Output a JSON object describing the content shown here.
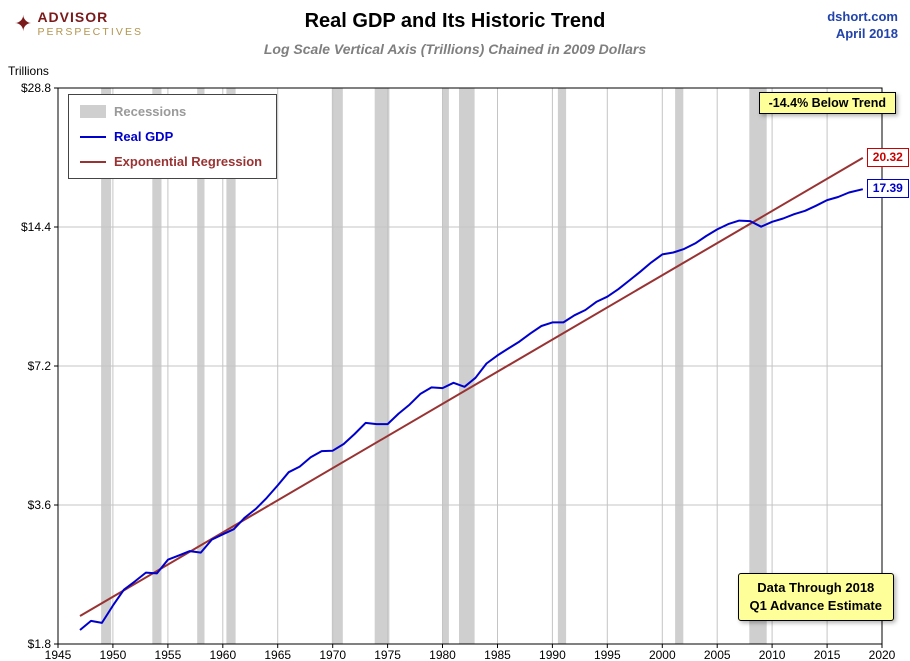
{
  "header": {
    "logo_line1": "ADVISOR",
    "logo_line2": "PERSPECTIVES",
    "title": "Real GDP and Its Historic Trend",
    "subtitle": "Log Scale Vertical Axis (Trillions) Chained in 2009 Dollars",
    "source": "dshort.com",
    "date": "April 2018"
  },
  "colors": {
    "gdp_line": "#0000cc",
    "regression_line": "#993333",
    "recession_band": "#cfcfcf",
    "annotation_bg": "#ffff99",
    "source_text": "#2244aa",
    "logo_red": "#7a1a1a",
    "logo_gold": "#b3954f"
  },
  "legend": [
    {
      "label": "Recessions",
      "type": "band",
      "color": "#cfcfcf",
      "label_color": "#9a9a9a"
    },
    {
      "label": "Real GDP",
      "type": "line",
      "color": "#0000cc",
      "label_color": "#0000cc"
    },
    {
      "label": "Exponential Regression",
      "type": "line",
      "color": "#993333",
      "label_color": "#993333"
    }
  ],
  "annotations": {
    "below_trend": "-14.4% Below Trend",
    "regression_end_value": "20.32",
    "gdp_end_value": "17.39",
    "data_through_line1": "Data Through 2018",
    "data_through_line2": "Q1 Advance Estimate"
  },
  "chart_data": {
    "type": "line",
    "title": "Real GDP and Its Historic Trend",
    "subtitle": "Log Scale Vertical Axis (Trillions) Chained in 2009 Dollars",
    "xlabel": "",
    "ylabel": "Trillions",
    "y_scale": "log",
    "x_range": [
      1945,
      2020
    ],
    "y_lim": [
      1.8,
      28.8
    ],
    "x_ticks": [
      1945,
      1950,
      1955,
      1960,
      1965,
      1970,
      1975,
      1980,
      1985,
      1990,
      1995,
      2000,
      2005,
      2010,
      2015,
      2020
    ],
    "y_ticks": [
      1.8,
      3.6,
      7.2,
      14.4,
      28.8
    ],
    "y_tick_labels": [
      "$1.8",
      "$3.6",
      "$7.2",
      "$14.4",
      "$28.8"
    ],
    "grid": true,
    "legend_position": "top-left",
    "recession_color": "#cfcfcf",
    "recessions": [
      [
        1948.92,
        1949.83
      ],
      [
        1953.58,
        1954.42
      ],
      [
        1957.67,
        1958.33
      ],
      [
        1960.33,
        1961.17
      ],
      [
        1969.92,
        1970.92
      ],
      [
        1973.83,
        1975.17
      ],
      [
        1980.0,
        1980.58
      ],
      [
        1981.5,
        1982.92
      ],
      [
        1990.5,
        1991.25
      ],
      [
        2001.17,
        2001.92
      ],
      [
        2007.92,
        2009.5
      ]
    ],
    "series": [
      {
        "name": "Real GDP",
        "color": "#0000cc",
        "end_label": "17.39",
        "x": [
          1947,
          1948,
          1949,
          1950,
          1951,
          1952,
          1953,
          1954,
          1955,
          1956,
          1957,
          1958,
          1959,
          1960,
          1961,
          1962,
          1963,
          1964,
          1965,
          1966,
          1967,
          1968,
          1969,
          1970,
          1971,
          1972,
          1973,
          1974,
          1975,
          1976,
          1977,
          1978,
          1979,
          1980,
          1981,
          1982,
          1983,
          1984,
          1985,
          1986,
          1987,
          1988,
          1989,
          1990,
          1991,
          1992,
          1993,
          1994,
          1995,
          1996,
          1997,
          1998,
          1999,
          2000,
          2001,
          2002,
          2003,
          2004,
          2005,
          2006,
          2007,
          2008,
          2009,
          2010,
          2011,
          2012,
          2013,
          2014,
          2015,
          2016,
          2017,
          2018.25
        ],
        "values": [
          1.93,
          2.02,
          2.0,
          2.18,
          2.36,
          2.46,
          2.57,
          2.56,
          2.74,
          2.8,
          2.86,
          2.84,
          3.03,
          3.11,
          3.19,
          3.38,
          3.53,
          3.73,
          3.97,
          4.24,
          4.36,
          4.57,
          4.71,
          4.72,
          4.88,
          5.13,
          5.42,
          5.39,
          5.39,
          5.68,
          5.94,
          6.27,
          6.47,
          6.45,
          6.62,
          6.49,
          6.79,
          7.29,
          7.59,
          7.86,
          8.13,
          8.47,
          8.79,
          8.95,
          8.95,
          9.27,
          9.52,
          9.91,
          10.17,
          10.56,
          11.03,
          11.52,
          12.07,
          12.56,
          12.68,
          12.91,
          13.27,
          13.77,
          14.23,
          14.61,
          14.87,
          14.83,
          14.42,
          14.78,
          15.02,
          15.35,
          15.61,
          16.01,
          16.47,
          16.72,
          17.1,
          17.39
        ]
      },
      {
        "name": "Exponential Regression",
        "color": "#993333",
        "end_label": "20.32",
        "x": [
          1947,
          2018.25
        ],
        "values": [
          2.07,
          20.32
        ]
      }
    ]
  }
}
